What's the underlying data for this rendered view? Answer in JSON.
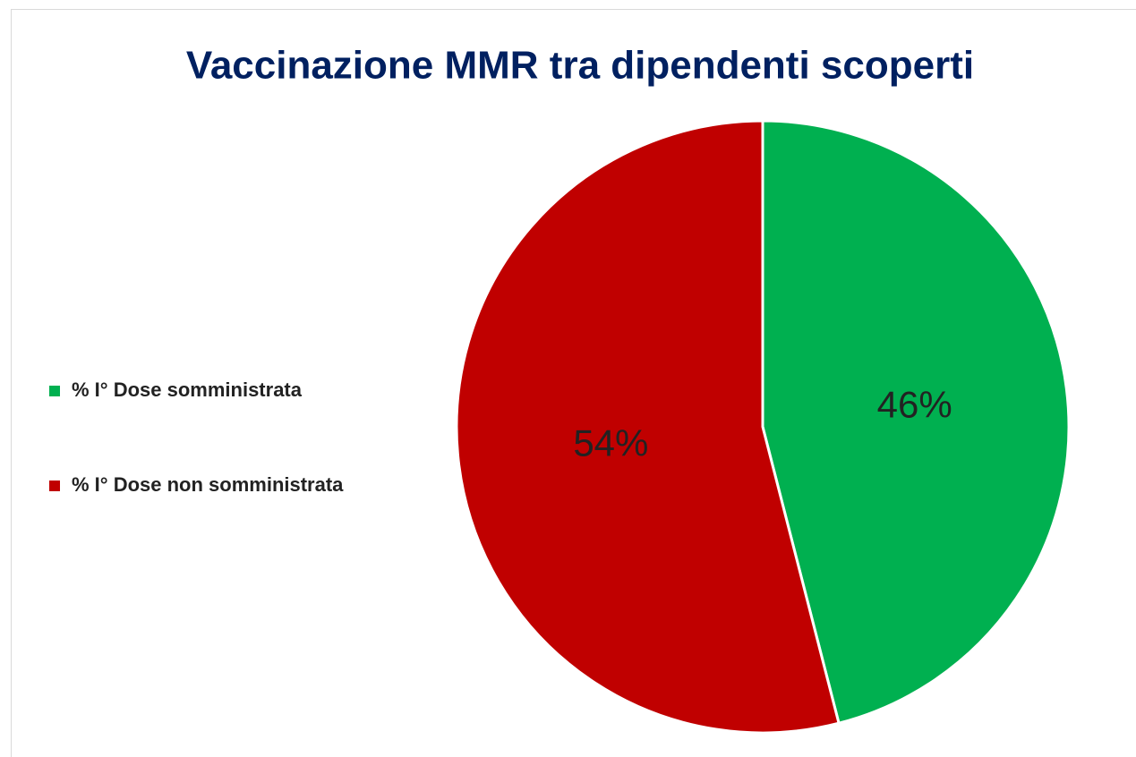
{
  "chart_data": {
    "type": "pie",
    "title": "Vaccinazione MMR tra dipendenti scoperti",
    "categories": [
      "% I° Dose somministrata",
      "% I° Dose non somministrata"
    ],
    "values": [
      46,
      54
    ],
    "value_labels": [
      "46%",
      "54%"
    ],
    "colors": [
      "#00b050",
      "#c00000"
    ],
    "legend": "left"
  }
}
